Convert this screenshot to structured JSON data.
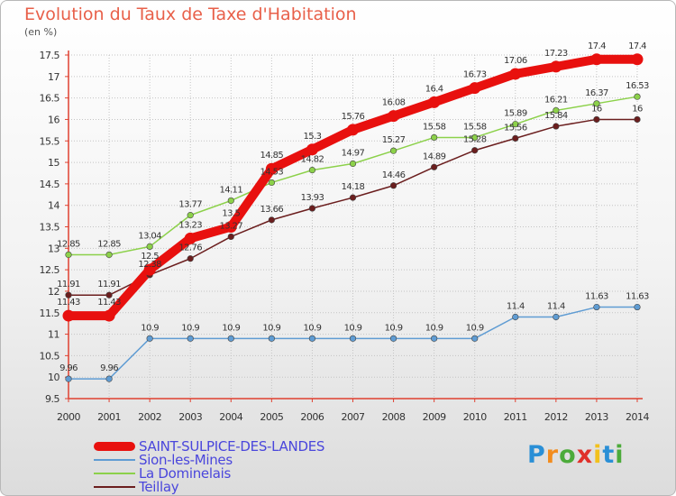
{
  "header": {
    "title": "Evolution du Taux de Taxe d'Habitation",
    "unit": "(en %)"
  },
  "logo": {
    "text": "Proxiti",
    "letter_colors": [
      "#2a8fd6",
      "#f28c1e",
      "#4cab3a",
      "#e0302a",
      "#f2c11c",
      "#2a8fd6",
      "#4cab3a"
    ]
  },
  "chart_data": {
    "type": "line",
    "title": "Evolution du Taux de Taxe d'Habitation",
    "ylabel": "(en %)",
    "xlabel": "",
    "x": [
      "2000",
      "2001",
      "2002",
      "2003",
      "2004",
      "2005",
      "2006",
      "2007",
      "2008",
      "2009",
      "2010",
      "2011",
      "2012",
      "2013",
      "2014"
    ],
    "ylim": [
      9.5,
      17.5
    ],
    "yticks": [
      "9.5",
      "10",
      "10.5",
      "11",
      "11.5",
      "12",
      "12.5",
      "13",
      "13.5",
      "14",
      "14.5",
      "15",
      "15.5",
      "16",
      "16.5",
      "17",
      "17.5"
    ],
    "grid": true,
    "legend_position": "bottom-left",
    "series": [
      {
        "name": "Teillay",
        "color": "#6b1e1e",
        "values": [
          11.91,
          11.91,
          12.38,
          12.76,
          13.27,
          13.66,
          13.93,
          14.18,
          14.46,
          14.89,
          15.28,
          15.56,
          15.84,
          16,
          16
        ],
        "labels": [
          "11.91",
          "11.91",
          "12.38",
          "12.76",
          "13.27",
          "13.66",
          "13.93",
          "14.18",
          "14.46",
          "14.89",
          "15.28",
          "15.56",
          "15.84",
          "16",
          "16"
        ]
      },
      {
        "name": "La Dominelais",
        "color": "#8cd14a",
        "values": [
          12.85,
          12.85,
          13.04,
          13.77,
          14.11,
          14.53,
          14.82,
          14.97,
          15.27,
          15.58,
          15.58,
          15.89,
          16.21,
          16.37,
          16.53
        ],
        "labels": [
          "12.85",
          "12.85",
          "13.04",
          "13.77",
          "14.11",
          "14.53",
          "14.82",
          "14.97",
          "15.27",
          "15.58",
          "15.58",
          "15.89",
          "16.21",
          "16.37",
          "16.53"
        ]
      },
      {
        "name": "Sion-les-Mines",
        "color": "#5f9cd3",
        "values": [
          9.96,
          9.96,
          10.9,
          10.9,
          10.9,
          10.9,
          10.9,
          10.9,
          10.9,
          10.9,
          10.9,
          11.4,
          11.4,
          11.63,
          11.63
        ],
        "labels": [
          "9.96",
          "9.96",
          "10.9",
          "10.9",
          "10.9",
          "10.9",
          "10.9",
          "10.9",
          "10.9",
          "10.9",
          "10.9",
          "11.4",
          "11.4",
          "11.63",
          "11.63"
        ]
      },
      {
        "name": "SAINT-SULPICE-DES-LANDES",
        "color": "#e8100e",
        "values": [
          11.43,
          11.43,
          12.5,
          13.23,
          13.5,
          14.85,
          15.3,
          15.76,
          16.08,
          16.4,
          16.73,
          17.06,
          17.23,
          17.4,
          17.4
        ],
        "labels": [
          "11.43",
          "11.43",
          "12.5",
          "13.23",
          "13.5",
          "14.85",
          "15.3",
          "15.76",
          "16.08",
          "16.4",
          "16.73",
          "17.06",
          "17.23",
          "17.4",
          "17.4"
        ]
      }
    ]
  }
}
